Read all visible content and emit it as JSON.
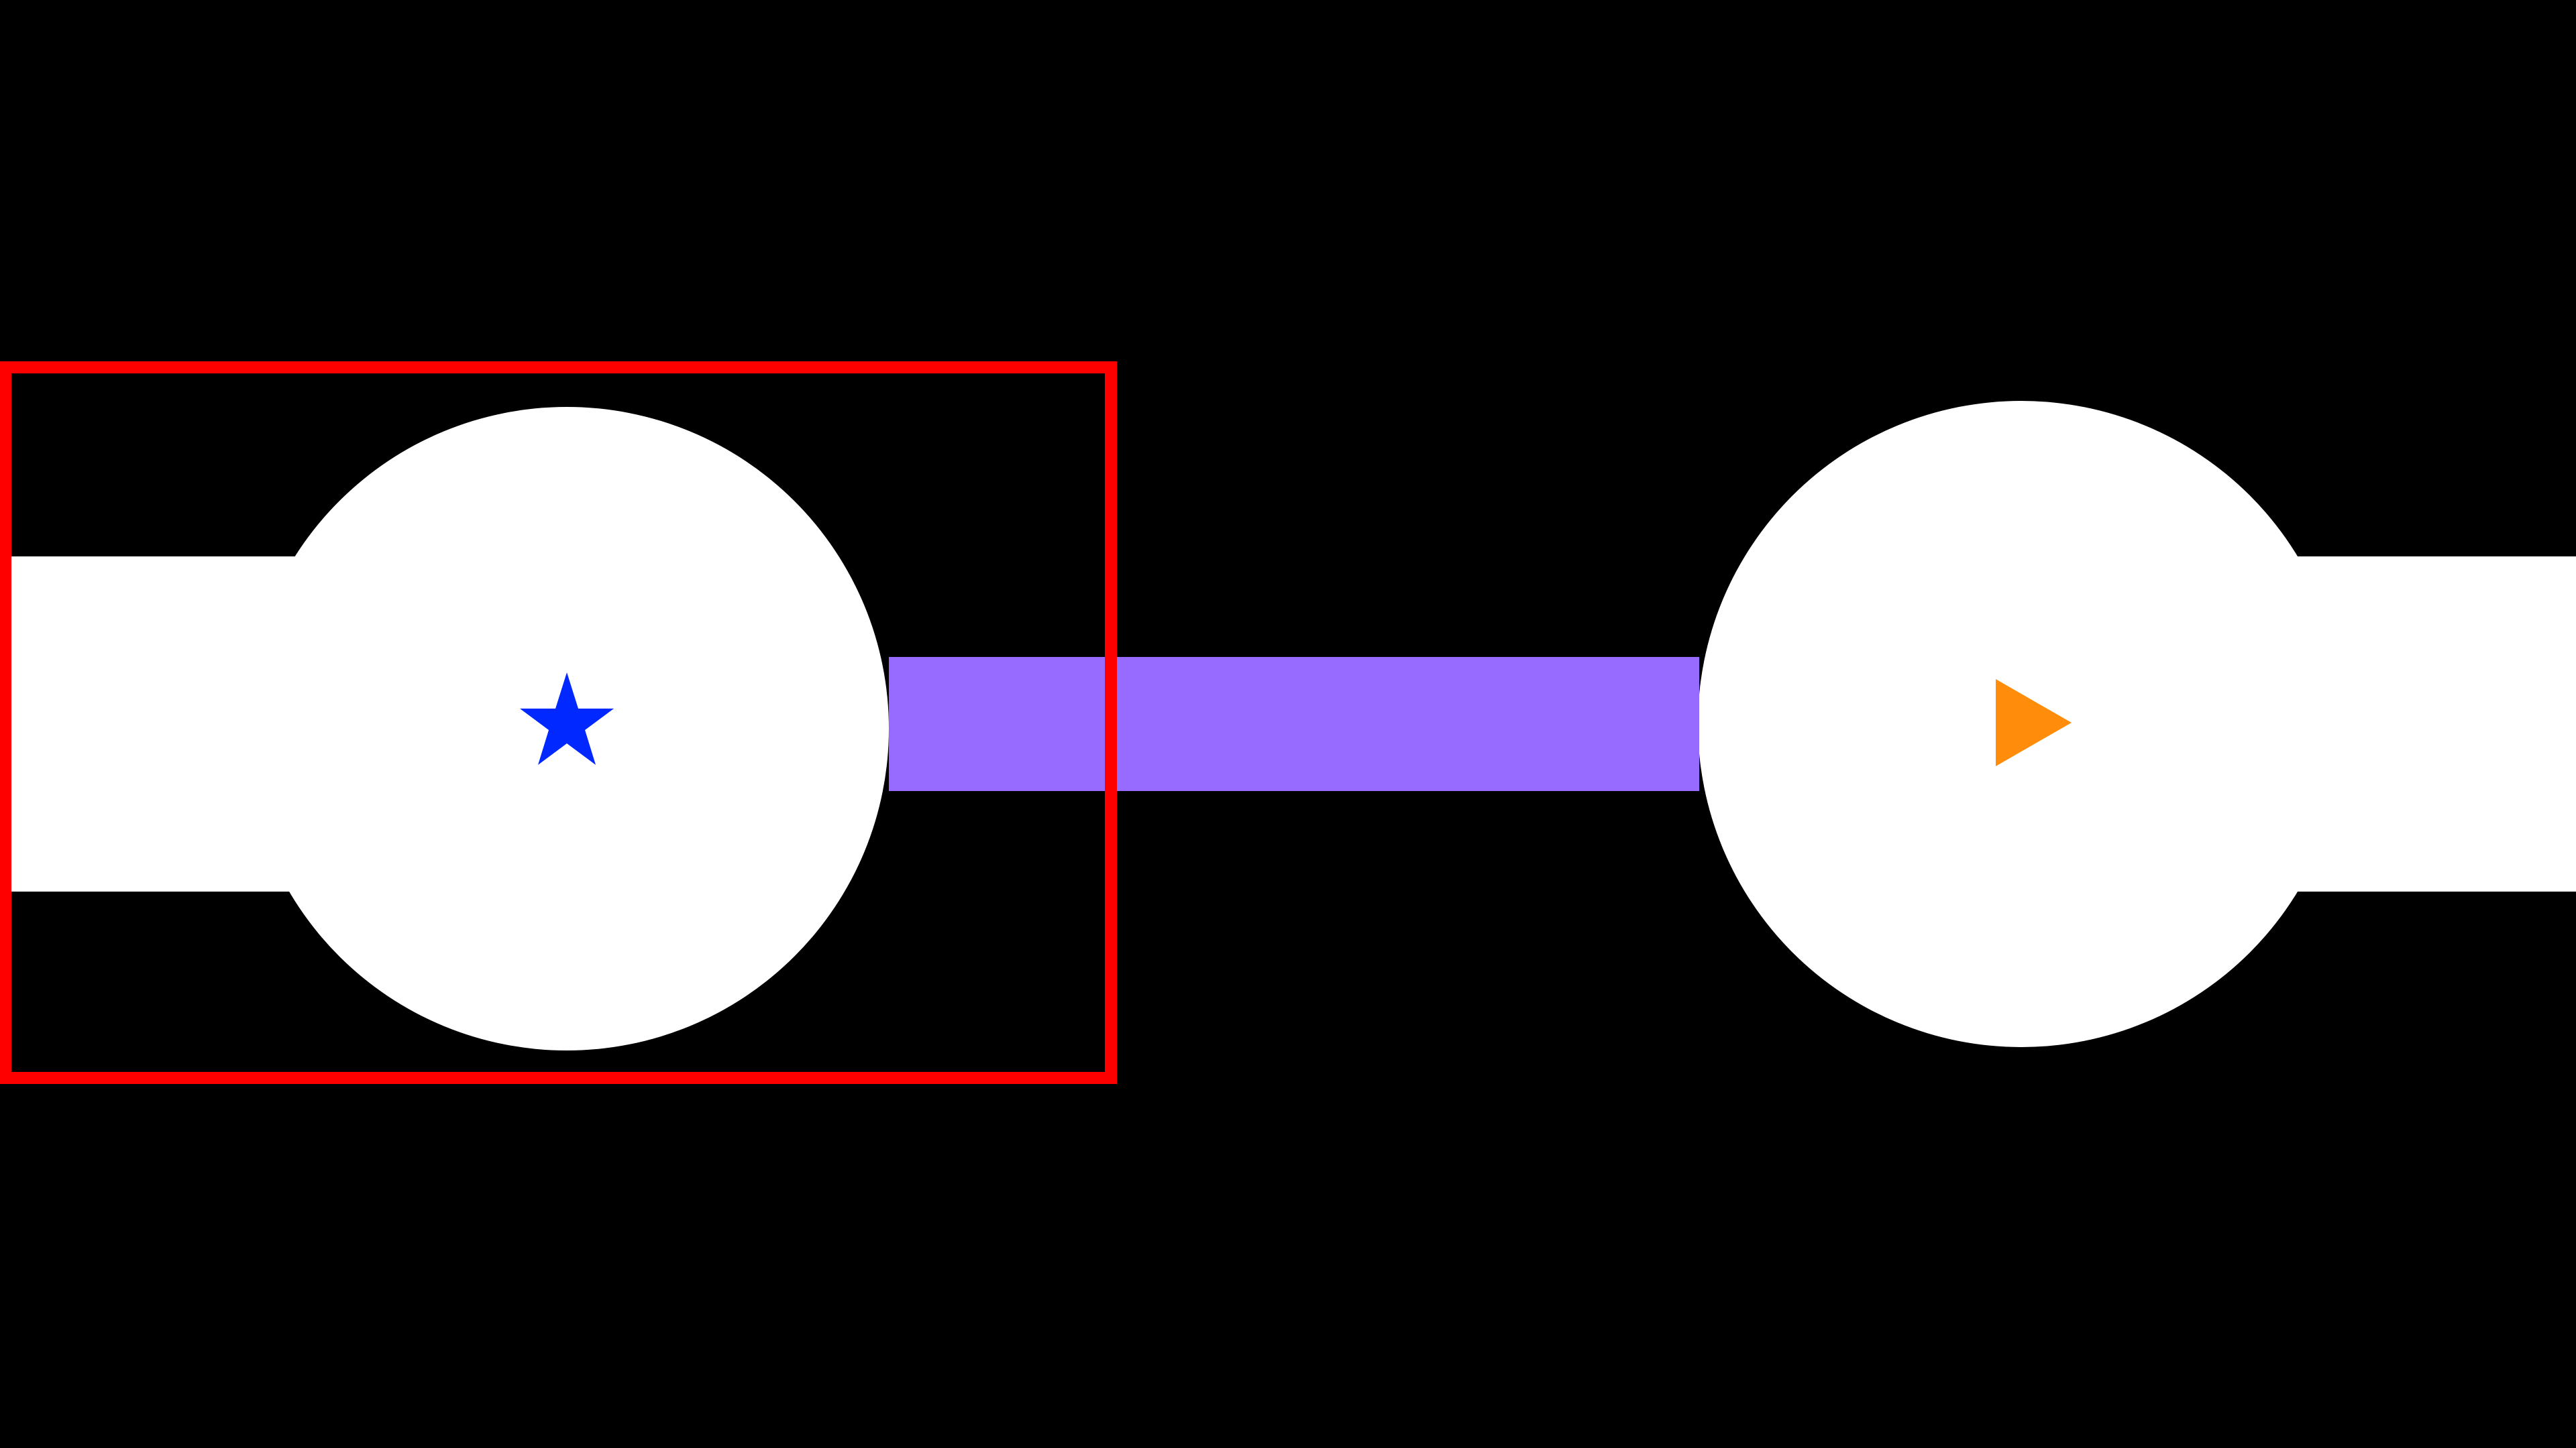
{
  "scene": {
    "background_color": "#000000",
    "terrain_color": "#ffffff",
    "left_room": {
      "marker": "star-icon",
      "marker_color": "#0028ff"
    },
    "right_room": {
      "marker": "play-triangle-icon",
      "marker_color": "#ff8c0a"
    },
    "connector": {
      "color": "#976bff"
    },
    "selection_box": {
      "color": "#ff0000",
      "target": "left_room"
    }
  }
}
